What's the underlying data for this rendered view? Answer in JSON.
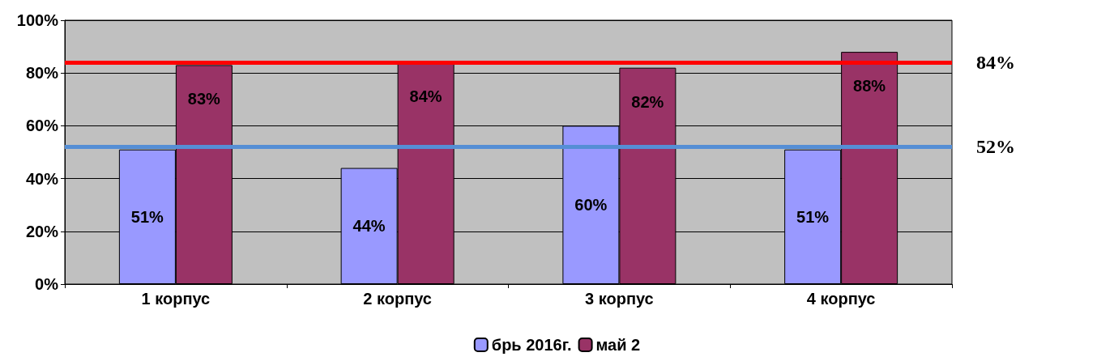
{
  "chart_data": {
    "type": "bar",
    "categories": [
      "1 корпус",
      "2 корпус",
      "3 корпус",
      "4 корпус"
    ],
    "series": [
      {
        "name": "брь 2016г.",
        "color": "#9999ff",
        "values": [
          51,
          44,
          60,
          51
        ],
        "value_labels": [
          "51%",
          "44%",
          "60%",
          "51%"
        ]
      },
      {
        "name": "май 2",
        "color": "#993366",
        "values": [
          83,
          84,
          82,
          88
        ],
        "value_labels": [
          "83%",
          "84%",
          "82%",
          "88%"
        ]
      }
    ],
    "ylim": [
      0,
      100
    ],
    "yticks": [
      {
        "value": 0,
        "label": "0%"
      },
      {
        "value": 20,
        "label": "20%"
      },
      {
        "value": 40,
        "label": "40%"
      },
      {
        "value": 60,
        "label": "60%"
      },
      {
        "value": 80,
        "label": "80%"
      },
      {
        "value": 100,
        "label": "100%"
      }
    ],
    "ref_lines": [
      {
        "axis": "y",
        "value": 84,
        "label": "84%",
        "color": "#ff0000"
      },
      {
        "axis": "y",
        "value": 52,
        "label": "52%",
        "color": "#558ed5"
      }
    ],
    "grid": "y",
    "legend": "bottom"
  }
}
